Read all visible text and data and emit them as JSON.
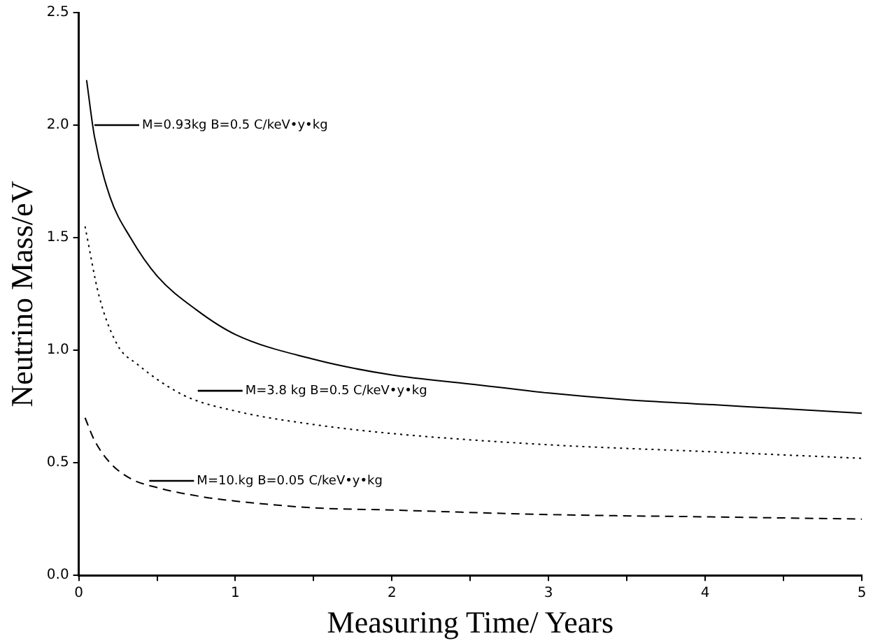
{
  "chart_data": {
    "type": "line",
    "xlabel": "Measuring Time/ Years",
    "ylabel": "Neutrino Mass/eV",
    "xlim": [
      0,
      5
    ],
    "ylim": [
      0,
      2.5
    ],
    "xticks": [
      0,
      {
        "value": 0.5,
        "label": null
      },
      1,
      {
        "value": 1.5,
        "label": null
      },
      2,
      {
        "value": 2.5,
        "label": null
      },
      3,
      {
        "value": 3.5,
        "label": null
      },
      4,
      {
        "value": 4.5,
        "label": null
      },
      5
    ],
    "yticks": [
      {
        "value": 0,
        "label": "0.0"
      },
      0.5,
      {
        "value": 1,
        "label": "1.0"
      },
      1.5,
      {
        "value": 2,
        "label": "2.0"
      },
      2.5
    ],
    "grid": false,
    "legend": false,
    "marker": "none",
    "series": [
      {
        "color": "#000000",
        "line_style": "solid",
        "x": [
          0.05,
          0.1,
          0.2,
          0.33,
          0.5,
          0.75,
          1,
          1.5,
          2,
          2.5,
          3,
          3.5,
          4,
          4.5,
          5
        ],
        "values": [
          2.2,
          1.95,
          1.68,
          1.5,
          1.33,
          1.18,
          1.07,
          0.96,
          0.89,
          0.85,
          0.81,
          0.78,
          0.76,
          0.74,
          0.72
        ]
      },
      {
        "color": "#000000",
        "line_style": "dotted",
        "x": [
          0.04,
          0.13,
          0.25,
          0.37,
          0.67,
          1,
          1.5,
          2,
          3,
          4,
          5
        ],
        "values": [
          1.55,
          1.24,
          1.02,
          0.94,
          0.8,
          0.73,
          0.67,
          0.63,
          0.58,
          0.55,
          0.52
        ]
      },
      {
        "color": "#000000",
        "line_style": "dashed",
        "x": [
          0.04,
          0.1,
          0.2,
          0.33,
          0.5,
          0.78,
          1,
          1.5,
          2,
          3,
          4,
          5
        ],
        "values": [
          0.7,
          0.6,
          0.5,
          0.43,
          0.39,
          0.35,
          0.33,
          0.3,
          0.29,
          0.27,
          0.26,
          0.25
        ]
      }
    ],
    "annotations": [
      "M=0.93kg B=0.5 C/keV•y•kg",
      "M=3.8 kg B=0.5 C/keV•y•kg",
      "M=10.kg B=0.05 C/keV•y•kg"
    ]
  }
}
